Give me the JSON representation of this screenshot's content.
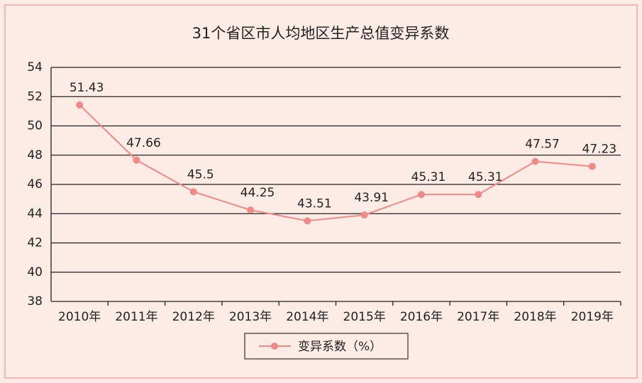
{
  "chart_data": {
    "type": "line",
    "title": "31个省区市人均地区生产总值变异系数",
    "categories": [
      "2010年",
      "2011年",
      "2012年",
      "2013年",
      "2014年",
      "2015年",
      "2016年",
      "2017年",
      "2018年",
      "2019年"
    ],
    "series": [
      {
        "name": "变异系数（%）",
        "color": "#ef8a86",
        "values": [
          51.43,
          47.66,
          45.5,
          44.25,
          43.51,
          43.91,
          45.31,
          45.31,
          47.57,
          47.23
        ]
      }
    ],
    "ylim": [
      38,
      54
    ],
    "yticks": [
      38,
      40,
      42,
      44,
      46,
      48,
      50,
      52,
      54
    ],
    "grid": true
  }
}
